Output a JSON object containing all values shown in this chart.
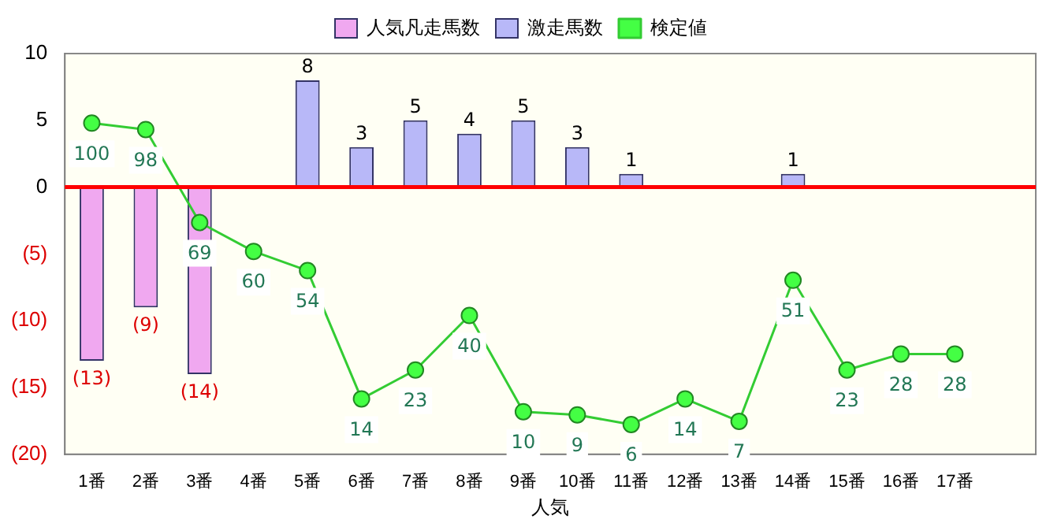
{
  "chart_data": {
    "type": "bar",
    "xlabel": "人気",
    "categories": [
      "1番",
      "2番",
      "3番",
      "4番",
      "5番",
      "6番",
      "7番",
      "8番",
      "9番",
      "10番",
      "11番",
      "12番",
      "13番",
      "14番",
      "15番",
      "16番",
      "17番",
      null
    ],
    "series": [
      {
        "name": "人気凡走馬数",
        "color": "#f0a8f0",
        "values": [
          -13,
          -9,
          -14,
          null,
          null,
          null,
          null,
          null,
          null,
          null,
          null,
          null,
          null,
          null,
          null,
          null,
          null,
          null
        ],
        "value_labels": [
          "(13)",
          "(9)",
          "(14)",
          null,
          null,
          null,
          null,
          null,
          null,
          null,
          null,
          null,
          null,
          null,
          null,
          null,
          null,
          null
        ]
      },
      {
        "name": "激走馬数",
        "color": "#b8b8f8",
        "values": [
          null,
          null,
          null,
          null,
          8,
          3,
          5,
          4,
          5,
          3,
          1,
          null,
          null,
          1,
          null,
          null,
          null,
          null
        ],
        "value_labels": [
          null,
          null,
          null,
          null,
          "8",
          "3",
          "5",
          "4",
          "5",
          "3",
          "1",
          null,
          null,
          "1",
          null,
          null,
          null,
          null
        ]
      },
      {
        "name": "検定値",
        "type": "line",
        "axis": "y2",
        "color": "#33cc33",
        "marker": "circle",
        "values": [
          100,
          98,
          69,
          60,
          54,
          14,
          23,
          40,
          10,
          9,
          6,
          14,
          7,
          51,
          23,
          28,
          28,
          null
        ],
        "value_labels": [
          "100",
          "98",
          "69",
          "60",
          "54",
          "14",
          "23",
          "40",
          "10",
          "9",
          "6",
          "14",
          "7",
          "51",
          "23",
          "28",
          "28",
          null
        ]
      }
    ],
    "ylim": [
      -20,
      10
    ],
    "yticks": [
      {
        "value": -20,
        "label": "(20)"
      },
      {
        "value": -15,
        "label": "(15)"
      },
      {
        "value": -10,
        "label": "(10)"
      },
      {
        "value": -5,
        "label": "(5)"
      },
      0,
      5,
      10
    ],
    "y2lim": [
      -3.3,
      121.7
    ],
    "ref_lines": [
      {
        "axis": "y",
        "value": 0,
        "color": "#ff0000"
      }
    ],
    "grid": false,
    "legend": "top"
  }
}
